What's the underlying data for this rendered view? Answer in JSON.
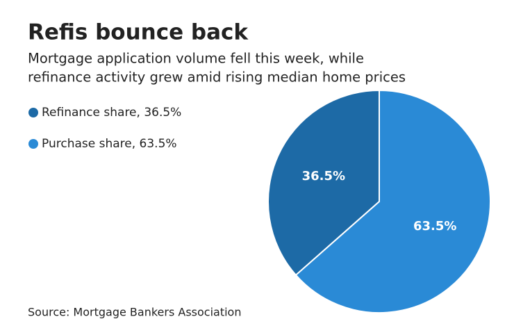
{
  "chart_data": {
    "type": "pie",
    "title": "Refis bounce back",
    "subtitle": [
      "Mortgage application volume fell this week, while",
      "refinance activity grew amid rising median home prices"
    ],
    "categories": [
      "Refinance share, 36.5%",
      "Purchase share, 63.5%"
    ],
    "values": [
      36.5,
      63.5
    ],
    "value_labels": [
      "36.5%",
      "63.5%"
    ],
    "colors": [
      "#1d6aa6",
      "#2a8ad6"
    ],
    "source": "Source: Mortgage Bankers Association"
  }
}
